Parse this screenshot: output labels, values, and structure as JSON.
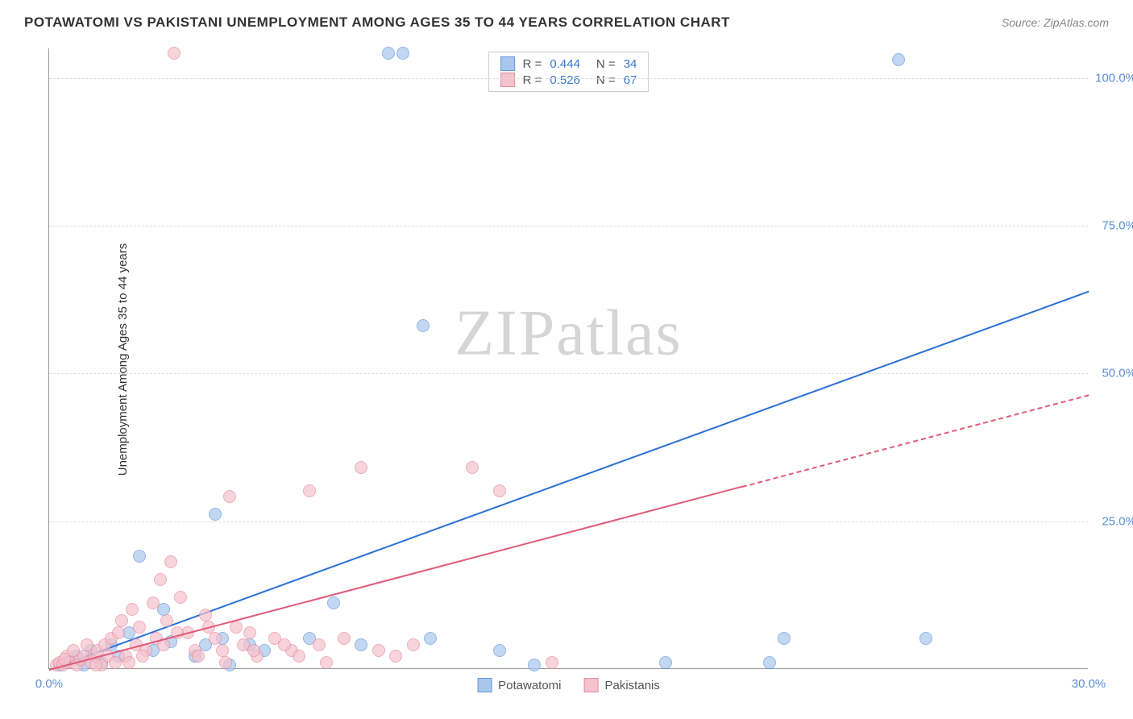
{
  "header": {
    "title": "POTAWATOMI VS PAKISTANI UNEMPLOYMENT AMONG AGES 35 TO 44 YEARS CORRELATION CHART",
    "source": "Source: ZipAtlas.com"
  },
  "chart": {
    "type": "scatter",
    "ylabel": "Unemployment Among Ages 35 to 44 years",
    "xlim": [
      0,
      30
    ],
    "ylim": [
      0,
      105
    ],
    "xticks": [
      {
        "v": 0,
        "label": "0.0%"
      },
      {
        "v": 30,
        "label": "30.0%"
      }
    ],
    "yticks": [
      {
        "v": 25,
        "label": "25.0%"
      },
      {
        "v": 50,
        "label": "50.0%"
      },
      {
        "v": 75,
        "label": "75.0%"
      },
      {
        "v": 100,
        "label": "100.0%"
      }
    ],
    "grid_color": "#dddddd",
    "background_color": "#ffffff",
    "series": [
      {
        "name": "Potawatomi",
        "fill_color": "#a9c7ec",
        "stroke_color": "#6699dd",
        "trend_color": "#2a6fd6",
        "R": "0.444",
        "N": "34",
        "trend": {
          "x1": 0,
          "y1": 0,
          "x2": 30,
          "y2": 64,
          "dashed_from": 30
        },
        "points": [
          {
            "x": 0.3,
            "y": 0.5
          },
          {
            "x": 0.5,
            "y": 1
          },
          {
            "x": 0.8,
            "y": 2
          },
          {
            "x": 1,
            "y": 0.5
          },
          {
            "x": 1.2,
            "y": 3
          },
          {
            "x": 1.5,
            "y": 1
          },
          {
            "x": 1.8,
            "y": 4
          },
          {
            "x": 2,
            "y": 2
          },
          {
            "x": 2.3,
            "y": 6
          },
          {
            "x": 2.6,
            "y": 19
          },
          {
            "x": 3,
            "y": 3
          },
          {
            "x": 3.3,
            "y": 10
          },
          {
            "x": 3.5,
            "y": 4.5
          },
          {
            "x": 4.2,
            "y": 2
          },
          {
            "x": 4.5,
            "y": 4
          },
          {
            "x": 4.8,
            "y": 26
          },
          {
            "x": 5,
            "y": 5
          },
          {
            "x": 5.2,
            "y": 0.5
          },
          {
            "x": 5.8,
            "y": 4
          },
          {
            "x": 6.2,
            "y": 3
          },
          {
            "x": 7.5,
            "y": 5
          },
          {
            "x": 8.2,
            "y": 11
          },
          {
            "x": 9,
            "y": 4
          },
          {
            "x": 9.8,
            "y": 104
          },
          {
            "x": 10.2,
            "y": 104
          },
          {
            "x": 10.8,
            "y": 58
          },
          {
            "x": 11,
            "y": 5
          },
          {
            "x": 13,
            "y": 3
          },
          {
            "x": 17.8,
            "y": 1
          },
          {
            "x": 20.8,
            "y": 1
          },
          {
            "x": 21.2,
            "y": 5
          },
          {
            "x": 24.5,
            "y": 103
          },
          {
            "x": 25.3,
            "y": 5
          },
          {
            "x": 14,
            "y": 0.5
          }
        ]
      },
      {
        "name": "Pakistanis",
        "fill_color": "#f4c2cc",
        "stroke_color": "#e88ca0",
        "trend_color": "#e05a7a",
        "R": "0.526",
        "N": "67",
        "trend": {
          "x1": 0,
          "y1": 0,
          "x2": 20,
          "y2": 31,
          "dashed_from": 20,
          "x3": 30,
          "y3": 46.5
        },
        "points": [
          {
            "x": 0.2,
            "y": 0.5
          },
          {
            "x": 0.3,
            "y": 1
          },
          {
            "x": 0.4,
            "y": 0.5
          },
          {
            "x": 0.5,
            "y": 2
          },
          {
            "x": 0.6,
            "y": 1
          },
          {
            "x": 0.7,
            "y": 3
          },
          {
            "x": 0.8,
            "y": 0.5
          },
          {
            "x": 0.9,
            "y": 1.5
          },
          {
            "x": 1,
            "y": 2
          },
          {
            "x": 1.1,
            "y": 4
          },
          {
            "x": 1.2,
            "y": 1
          },
          {
            "x": 1.3,
            "y": 2
          },
          {
            "x": 1.4,
            "y": 3
          },
          {
            "x": 1.5,
            "y": 0.5
          },
          {
            "x": 1.6,
            "y": 4
          },
          {
            "x": 1.7,
            "y": 2
          },
          {
            "x": 1.8,
            "y": 5
          },
          {
            "x": 1.9,
            "y": 1
          },
          {
            "x": 2,
            "y": 6
          },
          {
            "x": 2.1,
            "y": 8
          },
          {
            "x": 2.2,
            "y": 2
          },
          {
            "x": 2.4,
            "y": 10
          },
          {
            "x": 2.5,
            "y": 4
          },
          {
            "x": 2.6,
            "y": 7
          },
          {
            "x": 2.8,
            "y": 3
          },
          {
            "x": 3,
            "y": 11
          },
          {
            "x": 3.1,
            "y": 5
          },
          {
            "x": 3.2,
            "y": 15
          },
          {
            "x": 3.4,
            "y": 8
          },
          {
            "x": 3.5,
            "y": 18
          },
          {
            "x": 3.6,
            "y": 104
          },
          {
            "x": 3.8,
            "y": 12
          },
          {
            "x": 4,
            "y": 6
          },
          {
            "x": 4.2,
            "y": 3
          },
          {
            "x": 4.5,
            "y": 9
          },
          {
            "x": 4.8,
            "y": 5
          },
          {
            "x": 5,
            "y": 3
          },
          {
            "x": 5.2,
            "y": 29
          },
          {
            "x": 5.4,
            "y": 7
          },
          {
            "x": 5.6,
            "y": 4
          },
          {
            "x": 5.8,
            "y": 6
          },
          {
            "x": 6,
            "y": 2
          },
          {
            "x": 6.5,
            "y": 5
          },
          {
            "x": 7,
            "y": 3
          },
          {
            "x": 7.2,
            "y": 2
          },
          {
            "x": 7.5,
            "y": 30
          },
          {
            "x": 7.8,
            "y": 4
          },
          {
            "x": 8,
            "y": 1
          },
          {
            "x": 8.5,
            "y": 5
          },
          {
            "x": 9,
            "y": 34
          },
          {
            "x": 9.5,
            "y": 3
          },
          {
            "x": 10,
            "y": 2
          },
          {
            "x": 10.5,
            "y": 4
          },
          {
            "x": 12.2,
            "y": 34
          },
          {
            "x": 13,
            "y": 30
          },
          {
            "x": 14.5,
            "y": 1
          },
          {
            "x": 2.3,
            "y": 1
          },
          {
            "x": 2.7,
            "y": 2
          },
          {
            "x": 3.3,
            "y": 4
          },
          {
            "x": 3.7,
            "y": 6
          },
          {
            "x": 4.3,
            "y": 2
          },
          {
            "x": 4.6,
            "y": 7
          },
          {
            "x": 5.1,
            "y": 1
          },
          {
            "x": 5.9,
            "y": 3
          },
          {
            "x": 6.8,
            "y": 4
          },
          {
            "x": 1.35,
            "y": 0.5
          },
          {
            "x": 0.45,
            "y": 1.5
          }
        ]
      }
    ],
    "legend_top": {
      "rows": [
        {
          "swatch_fill": "#a9c7ec",
          "swatch_border": "#6699dd",
          "r_label": "R =",
          "r_val": "0.444",
          "n_label": "N =",
          "n_val": "34"
        },
        {
          "swatch_fill": "#f4c2cc",
          "swatch_border": "#e88ca0",
          "r_label": "R =",
          "r_val": "0.526",
          "n_label": "N =",
          "n_val": "67"
        }
      ]
    },
    "legend_bottom": [
      {
        "swatch_fill": "#a9c7ec",
        "swatch_border": "#6699dd",
        "label": "Potawatomi"
      },
      {
        "swatch_fill": "#f4c2cc",
        "swatch_border": "#e88ca0",
        "label": "Pakistanis"
      }
    ],
    "watermark": "ZIPatlas"
  }
}
